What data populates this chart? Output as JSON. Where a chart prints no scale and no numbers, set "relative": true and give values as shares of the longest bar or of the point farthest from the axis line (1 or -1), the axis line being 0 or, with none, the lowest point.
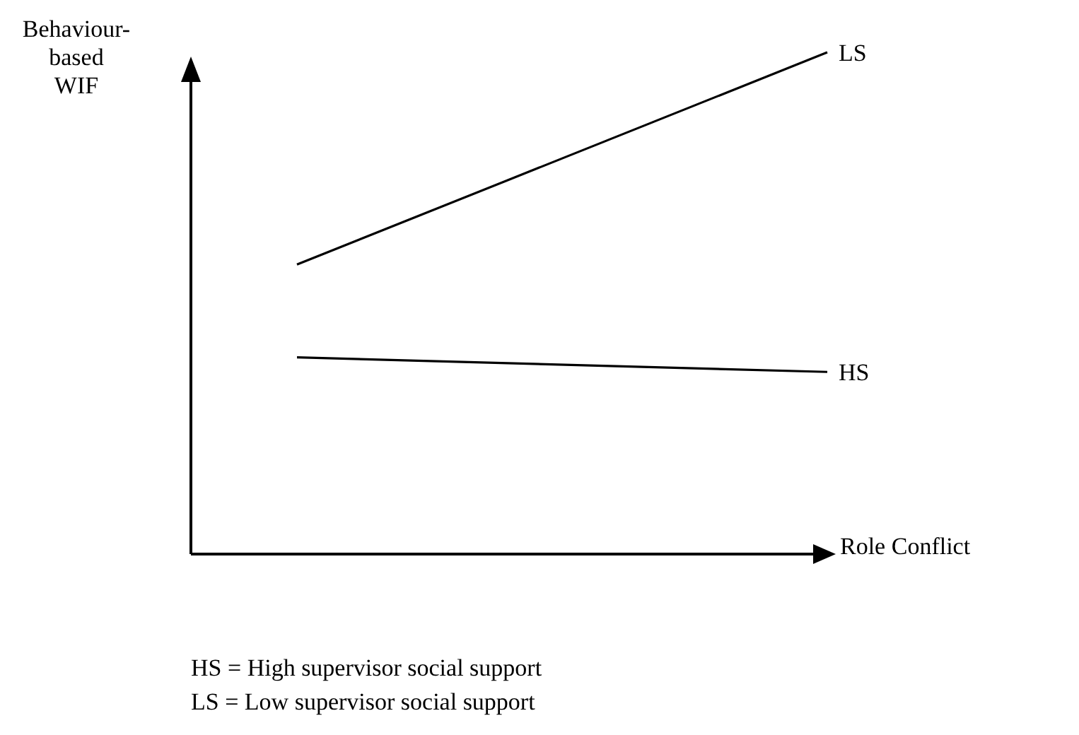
{
  "chart_data": {
    "type": "line",
    "relative": true,
    "ylabel": "Behaviour-based WIF",
    "xlabel": "Role Conflict",
    "categories": [
      null,
      null,
      null,
      null,
      null,
      null,
      null
    ],
    "marker": "none",
    "line_style": "solid",
    "series": [
      {
        "name": "LS",
        "color": "#000000",
        "values": [
          null,
          0.577,
          null,
          null,
          null,
          null,
          1
        ]
      },
      {
        "name": "HS",
        "color": "#000000",
        "values": [
          null,
          0.392,
          null,
          null,
          null,
          null,
          0.363
        ]
      }
    ],
    "annotations": [
      "HS = High supervisor social support",
      "LS = Low supervisor social support"
    ]
  }
}
